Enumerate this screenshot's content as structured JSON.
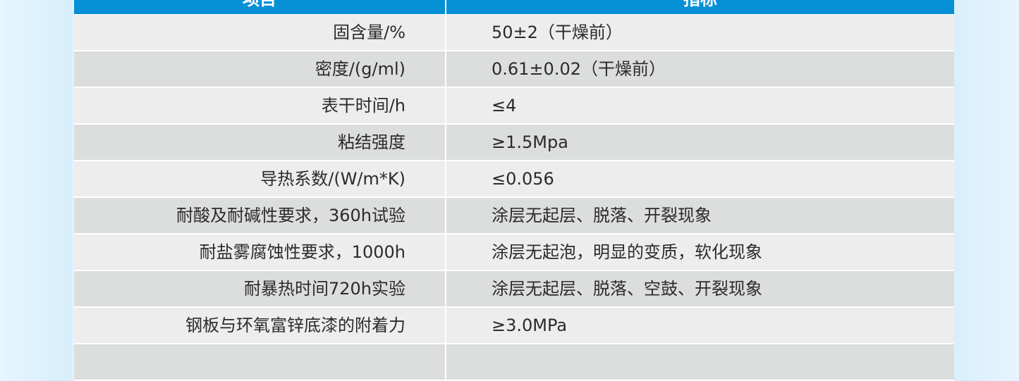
{
  "table": {
    "headers": [
      "项目",
      "指标"
    ],
    "rows": [
      [
        "固含量/%",
        "50±2（干燥前）"
      ],
      [
        "密度/(g/ml)",
        "0.61±0.02（干燥前）"
      ],
      [
        "表干时间/h",
        "≤4"
      ],
      [
        "粘结强度",
        "≥1.5Mpa"
      ],
      [
        "导热系数/(W/m*K)",
        "≤0.056"
      ],
      [
        "耐酸及耐碱性要求，360h试验",
        "涂层无起层、脱落、开裂现象"
      ],
      [
        "耐盐雾腐蚀性要求，1000h",
        "涂层无起泡，明显的变质，软化现象"
      ],
      [
        "耐暴热时间720h实验",
        "涂层无起层、脱落、空鼓、开裂现象"
      ],
      [
        "钢板与环氧富锌底漆的附着力",
        "≥3.0MPa"
      ],
      [
        "",
        ""
      ]
    ]
  },
  "colors": {
    "header": "#0590d6",
    "row_light": "#ededed",
    "row_dark": "#dcdddd",
    "background": "#eaf6fd"
  }
}
